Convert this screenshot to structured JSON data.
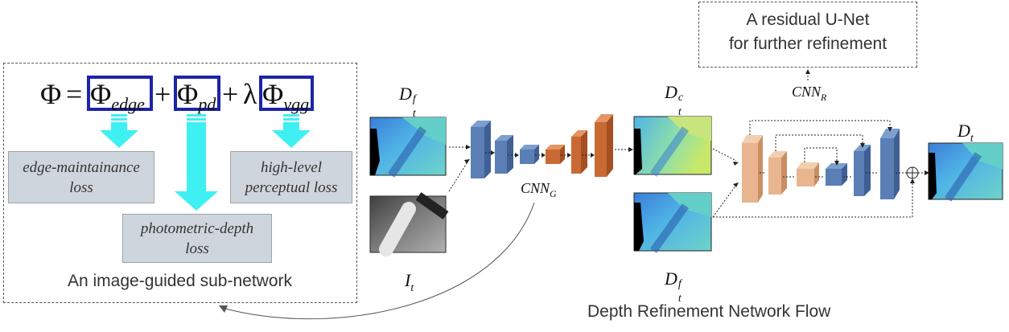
{
  "left_panel": {
    "equation": {
      "phi": "Φ",
      "equals": "=",
      "plus": "+",
      "lambda": "λ",
      "term1_sub": "edge",
      "term2_sub": "pd",
      "term3_sub": "vgg"
    },
    "losses": {
      "edge": [
        "edge-maintainance",
        "loss"
      ],
      "photometric": [
        "photometric-depth",
        "loss"
      ],
      "perceptual": [
        "high-level",
        "perceptual loss"
      ]
    },
    "caption": "An image-guided sub-network"
  },
  "flow": {
    "input_depth_label": {
      "main": "D",
      "sub": "t",
      "sup": "f"
    },
    "input_image_label": {
      "main": "I",
      "sub": "t"
    },
    "cnn_g_label": {
      "main": "CNN",
      "sub": "G"
    },
    "coarse_depth_label": {
      "main": "D",
      "sub": "t",
      "sup": "c"
    },
    "second_depth_label": {
      "main": "D",
      "sub": "t",
      "sup": "f"
    },
    "cnn_r_label": {
      "main": "CNN",
      "sub": "R"
    },
    "output_label": {
      "main": "D",
      "sub": "t"
    },
    "unet_note": [
      "A residual U-Net",
      "for further refinement"
    ],
    "caption": "Depth Refinement Network Flow",
    "colors": {
      "encoder_blue": "#5b7fb5",
      "decoder_orange": "#c96a34",
      "unet_tan": "#e8b58e",
      "arrow_cyan": "#3ff0f2",
      "term_border": "#1c24a8"
    }
  }
}
